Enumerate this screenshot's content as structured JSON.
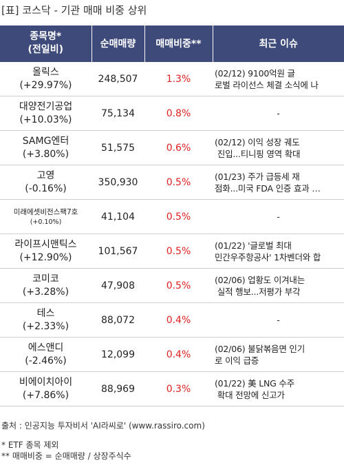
{
  "title": "[표] 코스닥 - 기관 매매 비중 상위",
  "header": {
    "col1_line1": "종목명*",
    "col1_line2": "(전일비)",
    "col2": "순매매량",
    "col3": "매매비중**",
    "col4": "최근 이슈"
  },
  "rows": [
    {
      "name": "올릭스",
      "change": "(+29.97%)",
      "volume": "248,507",
      "ratio": "1.3%",
      "issue": "(02/12) 9100억원 글\n로벌 라이선스 체결 소식에 나"
    },
    {
      "name": "대양전기공업",
      "change": "(+10.03%)",
      "volume": "75,134",
      "ratio": "0.8%",
      "issue": "-"
    },
    {
      "name": "SAMG엔터",
      "change": "(+3.80%)",
      "volume": "51,575",
      "ratio": "0.6%",
      "issue": "(02/12) 이익 성장 궤도\n 진입...티니핑 영역 확대"
    },
    {
      "name": "고영",
      "change": "(-0.16%)",
      "volume": "350,930",
      "ratio": "0.5%",
      "issue": "(01/23) 주가 급등세 재\n점화...미국 FDA 인증 효과 …"
    },
    {
      "name": "미래에셋비전스팩7호",
      "change": "(+0.10%)",
      "volume": "41,104",
      "ratio": "0.5%",
      "issue": "-"
    },
    {
      "name": "라이프시맨틱스",
      "change": "(+12.90%)",
      "volume": "101,567",
      "ratio": "0.5%",
      "issue": "(01/22) '글로벌 최대\n민간우주항공사' 1차벤더와 합"
    },
    {
      "name": "코미코",
      "change": "(+3.28%)",
      "volume": "47,908",
      "ratio": "0.5%",
      "issue": "(02/06) 업황도 이겨내는\n 실적 행보...저평가 부각"
    },
    {
      "name": "테스",
      "change": "(+2.33%)",
      "volume": "88,072",
      "ratio": "0.4%",
      "issue": "-"
    },
    {
      "name": "에스앤디",
      "change": "(-2.46%)",
      "volume": "12,099",
      "ratio": "0.4%",
      "issue": "(02/06) 불닭볶음면 인기\n로 이익 급증"
    },
    {
      "name": "비에이치아이",
      "change": "(+7.86%)",
      "volume": "88,969",
      "ratio": "0.3%",
      "issue": "(01/22) 美 LNG 수주\n 확대 전망에 신고가"
    }
  ],
  "footer": {
    "source": "출처 : 인공지능 투자비서 'AI라씨로' (www.rassiro.com)",
    "note1": "* ETF 종목 제외",
    "note2": "** 매매비중 = 순매매량 / 상장주식수"
  },
  "colors": {
    "header_bg": "#3d4a7a",
    "ratio_text": "#e02020"
  }
}
